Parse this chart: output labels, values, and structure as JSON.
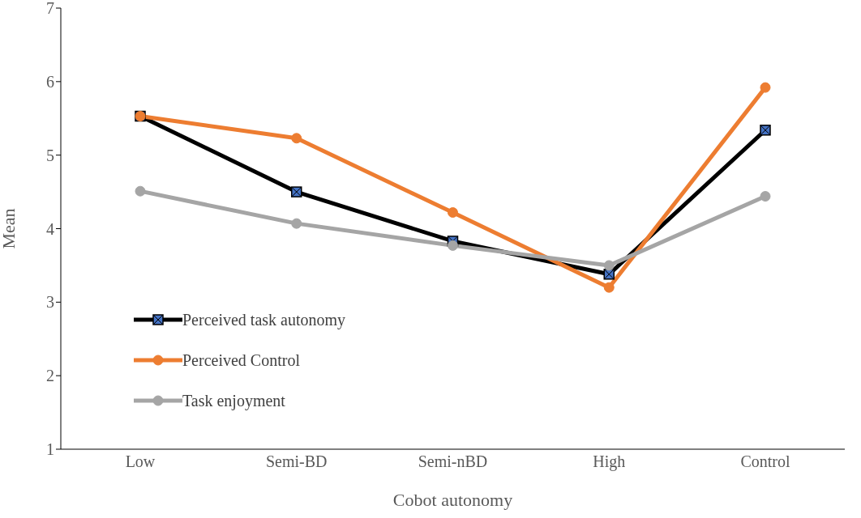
{
  "chart_data": {
    "type": "line",
    "xlabel": "Cobot autonomy",
    "ylabel": "Mean",
    "categories": [
      "Low",
      "Semi-BD",
      "Semi-nBD",
      "High",
      "Control"
    ],
    "ylim": [
      1,
      7
    ],
    "yticks": [
      1,
      2,
      3,
      4,
      5,
      6,
      7
    ],
    "grid": false,
    "legend": "bottom left",
    "series": [
      {
        "name": "Perceived task autonomy",
        "color": "#000000",
        "marker": "square",
        "values": [
          5.53,
          4.5,
          3.83,
          3.38,
          5.34
        ]
      },
      {
        "name": "Perceived Control",
        "color": "#ed7d31",
        "marker": "circle",
        "values": [
          5.53,
          5.23,
          4.22,
          3.2,
          5.92
        ]
      },
      {
        "name": "Task enjoyment",
        "color": "#a5a5a5",
        "marker": "circle",
        "values": [
          4.51,
          4.07,
          3.77,
          3.5,
          4.44
        ]
      }
    ]
  }
}
